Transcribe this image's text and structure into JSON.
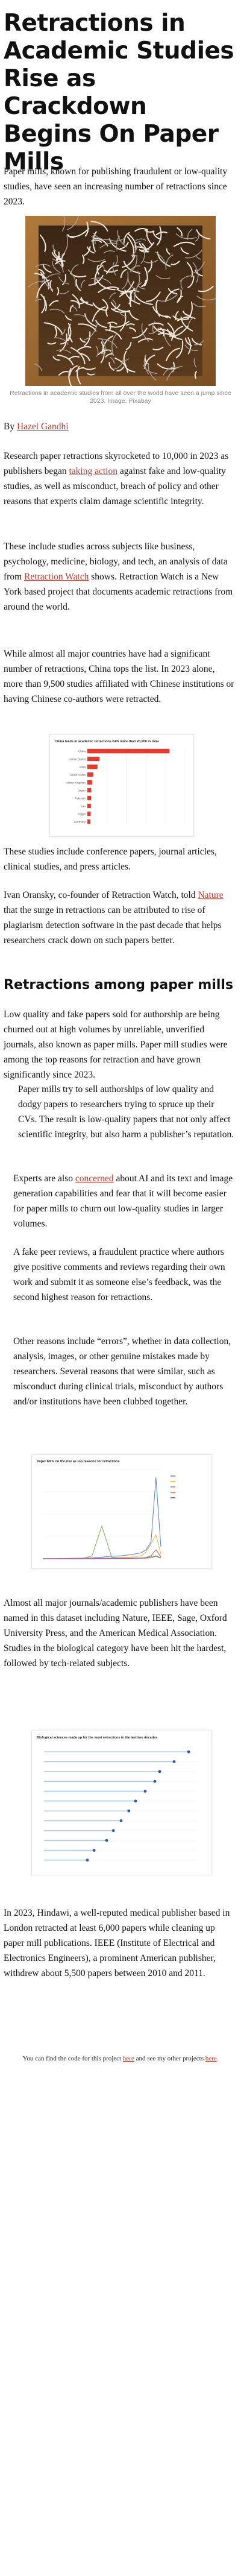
{
  "article": {
    "title": "Retractions in Academic Studies Rise as Crackdown Begins On Paper Mills",
    "lede": "Paper mills, known for publishing fraudulent or low-quality studies, have seen an increasing number of retractions since 2023.",
    "image": {
      "caption": "Retractions in academic studies from all over the world have seen a jump since 2023. Image: Pixabay"
    },
    "byline": {
      "prefix": "By ",
      "author": "Hazel Gandhi"
    },
    "paragraphs": {
      "p1_start": "Research paper retractions skyrocketed to 10,000 in 2023 as publishers began ",
      "p1_link": "taking action",
      "p1_end": " against fake and low-quality studies, as well as misconduct, breach of policy and other reasons that experts claim damage scientific integrity.",
      "p2_start": "These include studies across subjects like business, psychology, medicine, biology, and tech, an analysis of data from ",
      "p2_link": "Retraction Watch",
      "p2_end": " shows. Retraction Watch is a New York based project that documents academic retractions from around the world.",
      "p3": "While almost all major countries have had a significant number of retractions, China tops the list. In 2023 alone, more than 9,500 studies affiliated with Chinese institutions or having Chinese co-authors were retracted.",
      "p4": "These studies include conference papers, journal articles, clinical studies, and press articles.",
      "p5_start": "Ivan Oransky, co-founder of Retraction Watch, told ",
      "p5_link": "Nature",
      "p5_end": " that the surge in retractions can be attributed to rise of plagiarism detection software in the past decade that helps researchers crack down on such papers better."
    },
    "section_heading": "Retractions among paper mills",
    "section_paragraphs": {
      "s1": "Low quality and fake papers sold for authorship are being churned out at high volumes by unreliable, unverified journals, also known as paper mills. Paper mill studies were among the top reasons for retraction and have grown significantly since 2023.",
      "s2": "Paper mills try to sell authorships of low quality and dodgy papers to researchers trying to spruce up their CVs. The result is low-quality papers that not only affect scientific integrity, but also harm a publisher’s reputation.",
      "s3_start": "Experts are also ",
      "s3_link": "concerned",
      "s3_end": " about AI and its text and image generation capabilities and fear that it will become easier for paper mills to churn out low-quality studies in larger volumes.",
      "s4": "A fake peer reviews, a fraudulent practice where authors give positive comments and reviews regarding their own work and submit it as someone else’s feedback, was the second highest reason for retractions.",
      "s5": "Other reasons include “errors”, whether in data collection, analysis, images, or other genuine mistakes made by researchers. Several reasons that were similar, such as misconduct during clinical trials, misconduct by authors and/or institutions have been clubbed together.",
      "s6": "Almost all major journals/academic publishers have been named in this dataset including Nature, IEEE, Sage, Oxford University Press, and the American Medical Association. Studies in the biological category have been hit the hardest, followed by tech-related subjects.",
      "s7": "In 2023, Hindawi, a well-reputed medical publisher based in London retracted at least 6,000 papers while cleaning up paper mill publications. IEEE (Institute of Electrical and Electronics Engineers), a prominent American publisher, withdrew about 5,500 papers between 2010 and 2011."
    },
    "footer": {
      "start": "You can find the code for this project ",
      "link1": "here",
      "middle": " and see my other projects ",
      "link2": "here",
      "end": "."
    }
  },
  "chart_data": [
    {
      "type": "bar",
      "title": "China leads in academic retractions with more than 20,000 in total",
      "categories": [
        "China",
        "United States",
        "India",
        "Saudi Arabia",
        "United Kingdom",
        "Japan",
        "Pakistan",
        "Iran",
        "Egypt",
        "Germany"
      ],
      "values": [
        21000,
        3100,
        2600,
        1500,
        1200,
        1000,
        950,
        900,
        850,
        800
      ],
      "bar_color": "#e8392b",
      "xlim": [
        0,
        25000
      ]
    },
    {
      "type": "line",
      "title": "Paper Mills on the rise as top reasons for retractions",
      "x": [
        2000,
        2002,
        2004,
        2006,
        2008,
        2010,
        2012,
        2014,
        2016,
        2018,
        2020,
        2021,
        2022,
        2023,
        2024
      ],
      "series": [
        {
          "color": "#4a7fd4",
          "values": [
            20,
            25,
            30,
            40,
            60,
            100,
            160,
            260,
            300,
            420,
            600,
            900,
            1700,
            8200,
            1200
          ]
        },
        {
          "color": "#f2b233",
          "values": [
            10,
            12,
            15,
            20,
            30,
            40,
            60,
            80,
            120,
            160,
            300,
            700,
            1500,
            2400,
            500
          ]
        },
        {
          "color": "#69b34c",
          "values": [
            0,
            0,
            0,
            0,
            0,
            300,
            3300,
            150,
            80,
            60,
            80,
            100,
            200,
            300,
            100
          ]
        },
        {
          "color": "#d9534f",
          "values": [
            5,
            6,
            8,
            10,
            15,
            20,
            30,
            40,
            50,
            60,
            80,
            120,
            300,
            900,
            200
          ]
        },
        {
          "color": "#9b59b6",
          "values": [
            2,
            3,
            4,
            5,
            8,
            10,
            15,
            20,
            25,
            30,
            40,
            60,
            100,
            250,
            60
          ]
        }
      ],
      "ylim": [
        0,
        9000
      ]
    },
    {
      "type": "scatter",
      "title": "Biological sciences made up for the most retractions in the last two decades",
      "categories": [
        "",
        "",
        "",
        "",
        "",
        "",
        "",
        "",
        "",
        "",
        "",
        ""
      ],
      "values": [
        15000,
        13500,
        12000,
        11500,
        10500,
        9500,
        8800,
        8000,
        7200,
        6500,
        5200,
        4500
      ],
      "dot_color": "#2b57c8",
      "stem_color": "#9ec7ea",
      "xlim": [
        0,
        16000
      ]
    }
  ]
}
